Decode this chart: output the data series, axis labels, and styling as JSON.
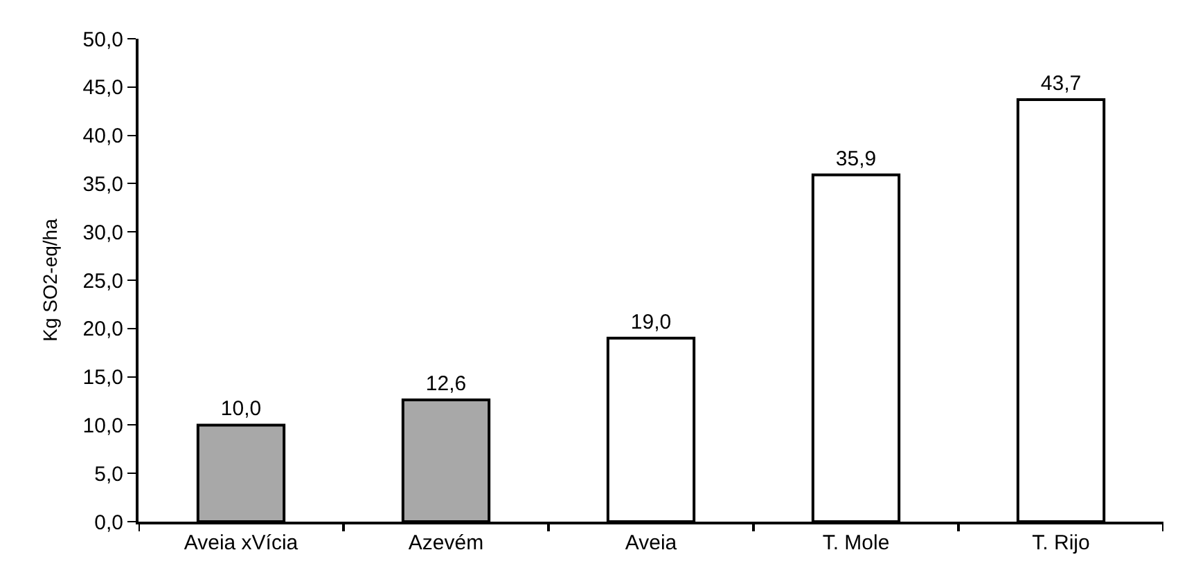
{
  "chart_data": {
    "type": "bar",
    "ylabel": "Kg SO2-eq/ha",
    "categories": [
      "Aveia xVícia",
      "Azevém",
      "Aveia",
      "T. Mole",
      "T. Rijo"
    ],
    "values": [
      10.0,
      12.6,
      19.0,
      35.9,
      43.7
    ],
    "value_labels": [
      "10,0",
      "12,6",
      "19,0",
      "35,9",
      "43,7"
    ],
    "colors": [
      "#a8a8a8",
      "#a8a8a8",
      "#ffffff",
      "#ffffff",
      "#ffffff"
    ],
    "ylim": [
      0,
      50
    ],
    "yticks": [
      {
        "value": 0,
        "label": "0,0"
      },
      {
        "value": 5,
        "label": "5,0"
      },
      {
        "value": 10,
        "label": "10,0"
      },
      {
        "value": 15,
        "label": "15,0"
      },
      {
        "value": 20,
        "label": "20,0"
      },
      {
        "value": 25,
        "label": "25,0"
      },
      {
        "value": 30,
        "label": "30,0"
      },
      {
        "value": 35,
        "label": "35,0"
      },
      {
        "value": 40,
        "label": "40,0"
      },
      {
        "value": 45,
        "label": "45,0"
      },
      {
        "value": 50,
        "label": "50,0"
      }
    ],
    "orientation": "vertical"
  }
}
